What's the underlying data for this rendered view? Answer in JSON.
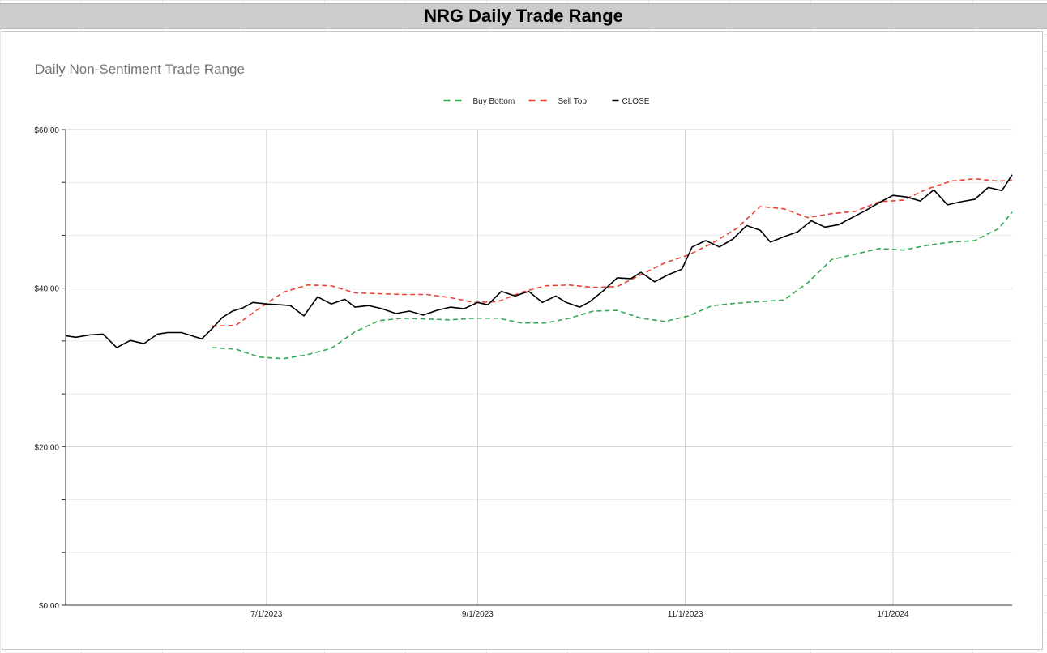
{
  "sheet": {
    "title": "NRG Daily Trade Range"
  },
  "chart_data": {
    "type": "line",
    "title": "Daily Non-Sentiment Trade Range",
    "xlabel": "",
    "ylabel": "",
    "y_ticks": [
      "$0.00",
      "$20.00",
      "$40.00",
      "$60.00"
    ],
    "x_ticks": [
      "7/1/2023",
      "9/1/2023",
      "11/1/2023",
      "1/1/2024"
    ],
    "x_tick_dates": [
      "2023-07-01",
      "2023-09-01",
      "2023-11-01",
      "2024-01-01"
    ],
    "x_range": [
      "2023-05-03",
      "2024-02-05"
    ],
    "ylim": [
      0,
      60
    ],
    "grid": true,
    "legend_position": "top-center",
    "series": [
      {
        "name": "Buy Bottom",
        "color": "#34a853",
        "dash": "dashed",
        "x": [
          "2023-06-15",
          "2023-06-22",
          "2023-06-29",
          "2023-07-06",
          "2023-07-13",
          "2023-07-20",
          "2023-07-27",
          "2023-08-03",
          "2023-08-10",
          "2023-08-17",
          "2023-08-24",
          "2023-08-31",
          "2023-09-07",
          "2023-09-14",
          "2023-09-21",
          "2023-09-28",
          "2023-10-05",
          "2023-10-12",
          "2023-10-19",
          "2023-10-26",
          "2023-11-02",
          "2023-11-09",
          "2023-11-16",
          "2023-11-23",
          "2023-11-30",
          "2023-12-07",
          "2023-12-14",
          "2023-12-21",
          "2023-12-28",
          "2024-01-04",
          "2024-01-11",
          "2024-01-18",
          "2024-01-25",
          "2024-02-01",
          "2024-02-05"
        ],
        "values": [
          32.5,
          32.3,
          31.3,
          31.1,
          31.6,
          32.4,
          34.5,
          35.9,
          36.2,
          36.1,
          36.0,
          36.2,
          36.2,
          35.6,
          35.6,
          36.2,
          37.1,
          37.2,
          36.2,
          35.8,
          36.5,
          37.8,
          38.1,
          38.3,
          38.5,
          40.7,
          43.6,
          44.3,
          45.0,
          44.8,
          45.4,
          45.8,
          46.0,
          47.5,
          49.6
        ]
      },
      {
        "name": "Sell Top",
        "color": "#ea4335",
        "dash": "dashed",
        "x": [
          "2023-06-15",
          "2023-06-22",
          "2023-06-29",
          "2023-07-06",
          "2023-07-13",
          "2023-07-20",
          "2023-07-27",
          "2023-08-03",
          "2023-08-10",
          "2023-08-17",
          "2023-08-24",
          "2023-08-31",
          "2023-09-07",
          "2023-09-14",
          "2023-09-21",
          "2023-09-28",
          "2023-10-05",
          "2023-10-12",
          "2023-10-19",
          "2023-10-26",
          "2023-11-02",
          "2023-11-09",
          "2023-11-16",
          "2023-11-23",
          "2023-11-30",
          "2023-12-07",
          "2023-12-14",
          "2023-12-21",
          "2023-12-28",
          "2024-01-04",
          "2024-01-11",
          "2024-01-18",
          "2024-01-25",
          "2024-02-01",
          "2024-02-05"
        ],
        "values": [
          35.2,
          35.3,
          37.5,
          39.5,
          40.4,
          40.3,
          39.4,
          39.3,
          39.2,
          39.2,
          38.8,
          38.2,
          38.3,
          39.5,
          40.3,
          40.4,
          40.1,
          40.2,
          41.7,
          43.2,
          44.2,
          45.7,
          47.5,
          50.3,
          50.0,
          48.9,
          49.4,
          49.7,
          50.9,
          51.1,
          52.5,
          53.5,
          53.8,
          53.5,
          53.6
        ]
      },
      {
        "name": "CLOSE",
        "color": "#000000",
        "dash": "solid",
        "x": [
          "2023-05-03",
          "2023-05-06",
          "2023-05-10",
          "2023-05-14",
          "2023-05-18",
          "2023-05-22",
          "2023-05-24",
          "2023-05-26",
          "2023-05-30",
          "2023-06-02",
          "2023-06-06",
          "2023-06-09",
          "2023-06-12",
          "2023-06-15",
          "2023-06-18",
          "2023-06-21",
          "2023-06-24",
          "2023-06-27",
          "2023-07-01",
          "2023-07-05",
          "2023-07-08",
          "2023-07-12",
          "2023-07-16",
          "2023-07-20",
          "2023-07-24",
          "2023-07-27",
          "2023-07-31",
          "2023-08-04",
          "2023-08-08",
          "2023-08-12",
          "2023-08-16",
          "2023-08-20",
          "2023-08-24",
          "2023-08-28",
          "2023-09-01",
          "2023-09-04",
          "2023-09-08",
          "2023-09-12",
          "2023-09-16",
          "2023-09-20",
          "2023-09-24",
          "2023-09-27",
          "2023-10-01",
          "2023-10-04",
          "2023-10-08",
          "2023-10-12",
          "2023-10-16",
          "2023-10-19",
          "2023-10-23",
          "2023-10-27",
          "2023-10-31",
          "2023-11-03",
          "2023-11-07",
          "2023-11-11",
          "2023-11-15",
          "2023-11-19",
          "2023-11-23",
          "2023-11-26",
          "2023-11-30",
          "2023-12-04",
          "2023-12-08",
          "2023-12-12",
          "2023-12-16",
          "2023-12-20",
          "2023-12-24",
          "2023-12-28",
          "2024-01-01",
          "2024-01-05",
          "2024-01-09",
          "2024-01-13",
          "2024-01-17",
          "2024-01-21",
          "2024-01-25",
          "2024-01-29",
          "2024-02-02",
          "2024-02-05"
        ],
        "values": [
          34.0,
          33.8,
          34.1,
          34.2,
          32.5,
          33.4,
          33.2,
          33.0,
          34.2,
          34.4,
          34.4,
          34.0,
          33.6,
          34.9,
          36.3,
          37.1,
          37.5,
          38.2,
          38.0,
          37.9,
          37.8,
          36.5,
          38.9,
          38.0,
          38.6,
          37.6,
          37.8,
          37.4,
          36.8,
          37.1,
          36.6,
          37.2,
          37.6,
          37.4,
          38.2,
          37.9,
          39.6,
          39.0,
          39.6,
          38.2,
          39.0,
          38.2,
          37.6,
          38.3,
          39.7,
          41.3,
          41.2,
          42.0,
          40.8,
          41.7,
          42.4,
          45.2,
          46.0,
          45.2,
          46.2,
          47.9,
          47.3,
          45.8,
          46.5,
          47.1,
          48.5,
          47.7,
          48.0,
          48.9,
          49.8,
          50.8,
          51.7,
          51.5,
          51.0,
          52.4,
          50.5,
          50.9,
          51.2,
          52.7,
          52.3,
          54.3
        ]
      }
    ]
  }
}
